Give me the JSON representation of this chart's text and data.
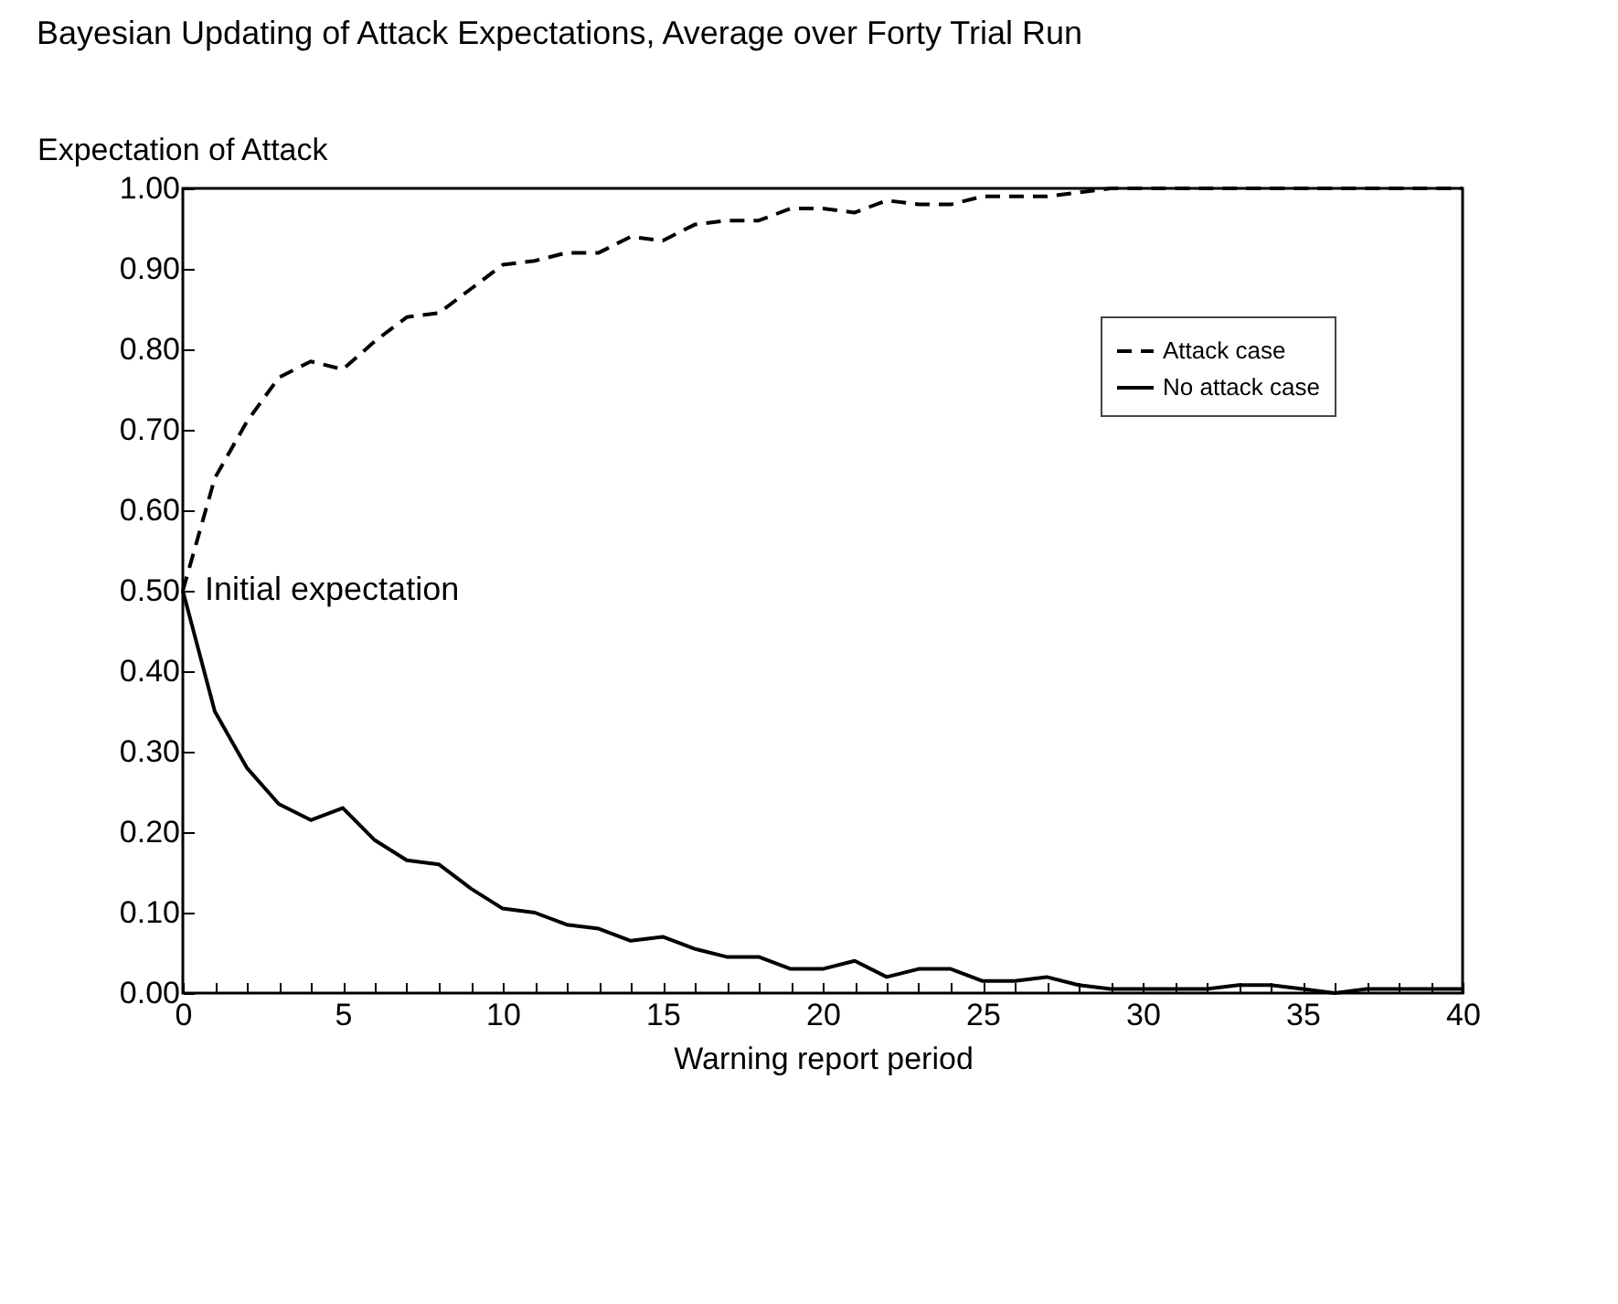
{
  "chart_data": {
    "type": "line",
    "title": "Bayesian Updating of Attack Expectations, Average over Forty Trial Run",
    "xlabel": "Warning report period",
    "ylabel": "Expectation of Attack",
    "x": [
      0,
      1,
      2,
      3,
      4,
      5,
      6,
      7,
      8,
      9,
      10,
      11,
      12,
      13,
      14,
      15,
      16,
      17,
      18,
      19,
      20,
      21,
      22,
      23,
      24,
      25,
      26,
      27,
      28,
      29,
      30,
      31,
      32,
      33,
      34,
      35,
      36,
      37,
      38,
      39,
      40
    ],
    "series": [
      {
        "name": "Attack case",
        "color": "#000000",
        "line_style": "dashed",
        "values": [
          0.5,
          0.64,
          0.71,
          0.765,
          0.785,
          0.775,
          0.81,
          0.84,
          0.845,
          0.875,
          0.905,
          0.91,
          0.92,
          0.92,
          0.94,
          0.935,
          0.955,
          0.96,
          0.96,
          0.975,
          0.975,
          0.97,
          0.985,
          0.98,
          0.98,
          0.99,
          0.99,
          0.99,
          0.995,
          1.0,
          1.0,
          1.0,
          1.0,
          1.0,
          1.0,
          1.0,
          1.0,
          1.0,
          1.0,
          1.0,
          1.0
        ]
      },
      {
        "name": "No attack case",
        "color": "#000000",
        "line_style": "solid",
        "values": [
          0.5,
          0.35,
          0.28,
          0.235,
          0.215,
          0.23,
          0.19,
          0.165,
          0.16,
          0.13,
          0.105,
          0.1,
          0.085,
          0.08,
          0.065,
          0.07,
          0.055,
          0.045,
          0.045,
          0.03,
          0.03,
          0.04,
          0.02,
          0.03,
          0.03,
          0.015,
          0.015,
          0.02,
          0.01,
          0.005,
          0.005,
          0.005,
          0.005,
          0.01,
          0.01,
          0.005,
          0.0,
          0.005,
          0.005,
          0.005,
          0.005
        ]
      }
    ],
    "annotations": [
      {
        "text": "Initial expectation",
        "x": 0,
        "y": 0.5
      }
    ],
    "xlim": [
      0,
      40
    ],
    "xticks": [
      0,
      {
        "value": 1,
        "label": null
      },
      {
        "value": 2,
        "label": null
      },
      {
        "value": 3,
        "label": null
      },
      {
        "value": 4,
        "label": null
      },
      5,
      {
        "value": 6,
        "label": null
      },
      {
        "value": 7,
        "label": null
      },
      {
        "value": 8,
        "label": null
      },
      {
        "value": 9,
        "label": null
      },
      10,
      {
        "value": 11,
        "label": null
      },
      {
        "value": 12,
        "label": null
      },
      {
        "value": 13,
        "label": null
      },
      {
        "value": 14,
        "label": null
      },
      15,
      {
        "value": 16,
        "label": null
      },
      {
        "value": 17,
        "label": null
      },
      {
        "value": 18,
        "label": null
      },
      {
        "value": 19,
        "label": null
      },
      20,
      {
        "value": 21,
        "label": null
      },
      {
        "value": 22,
        "label": null
      },
      {
        "value": 23,
        "label": null
      },
      {
        "value": 24,
        "label": null
      },
      25,
      {
        "value": 26,
        "label": null
      },
      {
        "value": 27,
        "label": null
      },
      {
        "value": 28,
        "label": null
      },
      {
        "value": 29,
        "label": null
      },
      30,
      {
        "value": 31,
        "label": null
      },
      {
        "value": 32,
        "label": null
      },
      {
        "value": 33,
        "label": null
      },
      {
        "value": 34,
        "label": null
      },
      35,
      {
        "value": 36,
        "label": null
      },
      {
        "value": 37,
        "label": null
      },
      {
        "value": 38,
        "label": null
      },
      {
        "value": 39,
        "label": null
      },
      40
    ],
    "ylim": [
      0,
      1
    ],
    "yticks": [
      {
        "value": 0,
        "label": "0.00"
      },
      {
        "value": 0.1,
        "label": "0.10"
      },
      {
        "value": 0.2,
        "label": "0.20"
      },
      {
        "value": 0.3,
        "label": "0.30"
      },
      {
        "value": 0.4,
        "label": "0.40"
      },
      {
        "value": 0.5,
        "label": "0.50"
      },
      {
        "value": 0.6,
        "label": "0.60"
      },
      {
        "value": 0.7,
        "label": "0.70"
      },
      {
        "value": 0.8,
        "label": "0.80"
      },
      {
        "value": 0.9,
        "label": "0.90"
      },
      {
        "value": 1,
        "label": "1.00"
      }
    ],
    "grid": false,
    "legend": "top right",
    "marker": "none"
  }
}
